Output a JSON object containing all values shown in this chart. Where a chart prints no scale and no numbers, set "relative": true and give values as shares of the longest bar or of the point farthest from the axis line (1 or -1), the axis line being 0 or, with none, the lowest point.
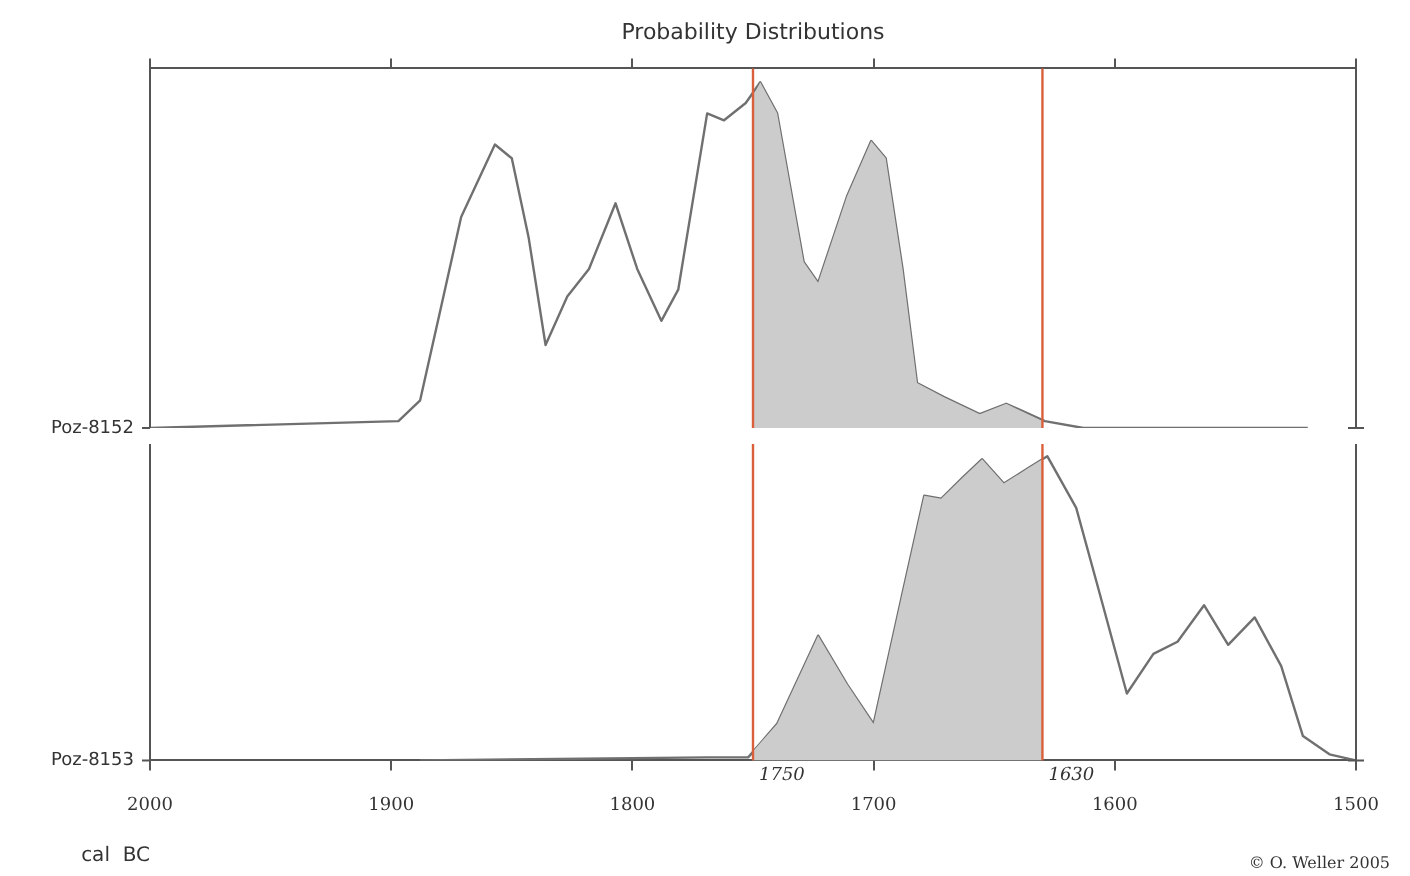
{
  "chart_data": [
    {
      "type": "line",
      "title": "Probability Distributions",
      "ylabel": "Poz-8152",
      "relative": true,
      "xlim": [
        2000,
        1500
      ],
      "xticks": [
        2000,
        1900,
        1800,
        1700,
        1600,
        1500
      ],
      "tick_labels": false,
      "series": [
        {
          "type": "area",
          "color": "#cccccc",
          "x": [
            1750,
            1747,
            1740,
            1729,
            1723,
            1711,
            1701,
            1695,
            1688,
            1682,
            1671,
            1656,
            1645,
            1630
          ],
          "values": [
            0.96,
            1,
            0.91,
            0.48,
            0.42,
            0.67,
            0.83,
            0.78,
            0.46,
            0.13,
            0.09,
            0.04,
            0.07,
            0.02
          ]
        },
        {
          "color": "#707070",
          "x": [
            2000,
            1897,
            1888,
            1879,
            1871,
            1857,
            1850,
            1843,
            1836,
            1827,
            1818,
            1807,
            1798,
            1788,
            1781,
            1769,
            1762,
            1753,
            1747,
            1740,
            1729,
            1723,
            1711,
            1701,
            1695,
            1688,
            1682,
            1671,
            1656,
            1645,
            1629,
            1613,
            1520
          ],
          "values": [
            0,
            0.02,
            0.08,
            0.36,
            0.61,
            0.82,
            0.78,
            0.55,
            0.24,
            0.38,
            0.46,
            0.65,
            0.46,
            0.31,
            0.4,
            0.91,
            0.89,
            0.94,
            1,
            0.91,
            0.48,
            0.42,
            0.67,
            0.83,
            0.78,
            0.46,
            0.13,
            0.09,
            0.04,
            0.07,
            0.02,
            0,
            0
          ]
        }
      ],
      "ref_lines": [
        {
          "axis": "x",
          "value": 1750,
          "color": "#d9603b"
        },
        {
          "axis": "x",
          "value": 1630,
          "color": "#d9603b"
        }
      ]
    },
    {
      "type": "line",
      "xlabel": "cal  BC",
      "ylabel": "Poz-8153",
      "relative": true,
      "xlim": [
        2000,
        1500
      ],
      "xticks": [
        2000,
        1900,
        1800,
        1700,
        1600,
        1500
      ],
      "tick_labels": "x",
      "series": [
        {
          "type": "area",
          "color": "#cccccc",
          "x": [
            1750,
            1740,
            1723,
            1711,
            1700,
            1688,
            1679,
            1672,
            1663,
            1655,
            1646,
            1636,
            1630
          ],
          "values": [
            0.03,
            0.12,
            0.41,
            0.25,
            0.12,
            0.55,
            0.87,
            0.86,
            0.93,
            0.99,
            0.91,
            0.96,
            0.99
          ]
        },
        {
          "color": "#707070",
          "x": [
            1888,
            1769,
            1752,
            1740,
            1723,
            1711,
            1700,
            1688,
            1679,
            1672,
            1663,
            1655,
            1646,
            1636,
            1628,
            1616,
            1607,
            1595,
            1584,
            1574,
            1563,
            1553,
            1542,
            1531,
            1522,
            1511,
            1500
          ],
          "values": [
            0,
            0.01,
            0.01,
            0.12,
            0.41,
            0.25,
            0.12,
            0.55,
            0.87,
            0.86,
            0.93,
            0.99,
            0.91,
            0.96,
            1,
            0.83,
            0.57,
            0.22,
            0.35,
            0.39,
            0.51,
            0.38,
            0.47,
            0.31,
            0.08,
            0.02,
            0
          ]
        }
      ],
      "ref_lines": [
        {
          "axis": "x",
          "value": 1750,
          "label": "1750",
          "color": "#d9603b"
        },
        {
          "axis": "x",
          "value": 1630,
          "label": "1630",
          "color": "#d9603b"
        }
      ],
      "annotations": [
        "© O. Weller 2005"
      ]
    }
  ]
}
